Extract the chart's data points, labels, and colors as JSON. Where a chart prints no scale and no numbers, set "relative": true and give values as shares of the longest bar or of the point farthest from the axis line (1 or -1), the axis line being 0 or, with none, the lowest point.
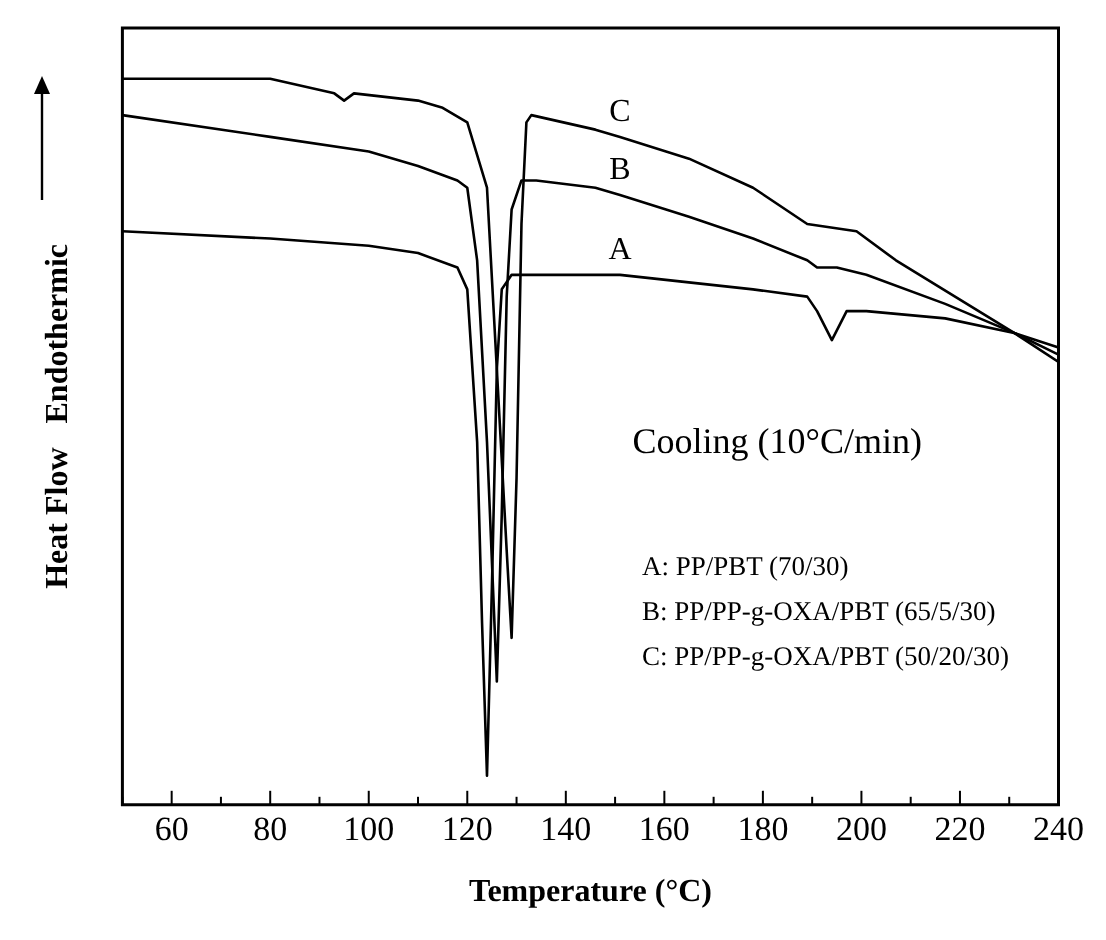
{
  "chart_data": {
    "type": "line",
    "relative": true,
    "xlabel": "Temperature (°C)",
    "ylabel": "Heat Flow   Endothermic",
    "xlim": [
      50,
      240
    ],
    "xticks": [
      {
        "value": 50,
        "label": null
      },
      60,
      {
        "value": 70,
        "label": null
      },
      80,
      {
        "value": 90,
        "label": null
      },
      100,
      {
        "value": 110,
        "label": null
      },
      120,
      {
        "value": 130,
        "label": null
      },
      140,
      {
        "value": 150,
        "label": null
      },
      160,
      {
        "value": 170,
        "label": null
      },
      180,
      {
        "value": 190,
        "label": null
      },
      200,
      {
        "value": 210,
        "label": null
      },
      220,
      {
        "value": 230,
        "label": null
      },
      240
    ],
    "grid": false,
    "legend": false,
    "marker": "none",
    "line_style": "solid",
    "annotations": [
      "Cooling (10°C/min)",
      "A: PP/PBT (70/30)",
      "B: PP/PP-g-OXA/PBT (65/5/30)",
      "C: PP/PP-g-OXA/PBT (50/20/30)"
    ],
    "series": [
      {
        "name": "A",
        "color": "#000000",
        "x": [
          50,
          80,
          100,
          110,
          118,
          120,
          122,
          123,
          124,
          125,
          126,
          127,
          129,
          135,
          146,
          151,
          178,
          189,
          191,
          194,
          197,
          201,
          217,
          231,
          240
        ],
        "values": [
          0.79,
          0.78,
          0.77,
          0.76,
          0.74,
          0.71,
          0.5,
          0.25,
          0.04,
          0.3,
          0.6,
          0.71,
          0.73,
          0.73,
          0.73,
          0.73,
          0.71,
          0.7,
          0.68,
          0.64,
          0.68,
          0.68,
          0.67,
          0.65,
          0.63
        ]
      },
      {
        "name": "B",
        "color": "#000000",
        "x": [
          50,
          80,
          100,
          110,
          118,
          120,
          122,
          124,
          126,
          127,
          128,
          129,
          131,
          134,
          146,
          151,
          165,
          178,
          189,
          191,
          195,
          201,
          217,
          231,
          240
        ],
        "values": [
          0.95,
          0.92,
          0.9,
          0.88,
          0.86,
          0.85,
          0.75,
          0.5,
          0.17,
          0.4,
          0.7,
          0.82,
          0.86,
          0.86,
          0.85,
          0.84,
          0.81,
          0.78,
          0.75,
          0.74,
          0.74,
          0.73,
          0.69,
          0.65,
          0.62
        ]
      },
      {
        "name": "C",
        "color": "#000000",
        "x": [
          50,
          80,
          93,
          95,
          97,
          110,
          115,
          120,
          124,
          126,
          128,
          129,
          130,
          131,
          132,
          133,
          146,
          151,
          165,
          178,
          189,
          199,
          207,
          231,
          240
        ],
        "values": [
          1.0,
          1.0,
          0.98,
          0.97,
          0.98,
          0.97,
          0.96,
          0.94,
          0.85,
          0.6,
          0.35,
          0.23,
          0.45,
          0.8,
          0.94,
          0.95,
          0.93,
          0.92,
          0.89,
          0.85,
          0.8,
          0.79,
          0.75,
          0.65,
          0.61
        ]
      }
    ]
  }
}
